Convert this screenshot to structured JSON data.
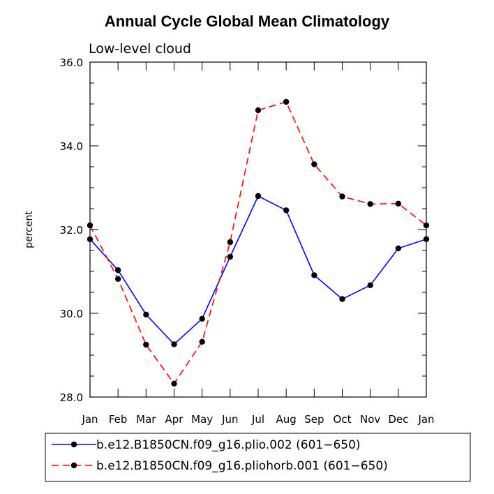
{
  "chart_data": {
    "type": "line",
    "title": "Annual Cycle Global Mean Climatology",
    "subtitle": "Low-level cloud",
    "xlabel": "",
    "ylabel": "percent",
    "categories": [
      "Jan",
      "Feb",
      "Mar",
      "Apr",
      "May",
      "Jun",
      "Jul",
      "Aug",
      "Sep",
      "Oct",
      "Nov",
      "Dec",
      "Jan"
    ],
    "ylim": [
      28.0,
      36.0
    ],
    "yticks": [
      "28.0",
      "30.0",
      "32.0",
      "34.0",
      "36.0"
    ],
    "series": [
      {
        "name": "b.e12.B1850CN.f09_g16.plio.002 (601−650)",
        "color": "#0000ff",
        "dash": "solid",
        "values": [
          31.77,
          31.03,
          29.97,
          29.26,
          29.87,
          31.35,
          32.8,
          32.46,
          30.91,
          30.34,
          30.67,
          31.55,
          31.77
        ]
      },
      {
        "name": "b.e12.B1850CN.f09_g16.pliohorb.001 (601−650)",
        "color": "#ff0000",
        "dash": "dashed",
        "values": [
          32.1,
          30.82,
          29.25,
          28.32,
          29.32,
          31.7,
          34.85,
          35.05,
          33.56,
          32.79,
          32.61,
          32.62,
          32.1
        ]
      }
    ],
    "legend": "bottom",
    "grid": false
  }
}
